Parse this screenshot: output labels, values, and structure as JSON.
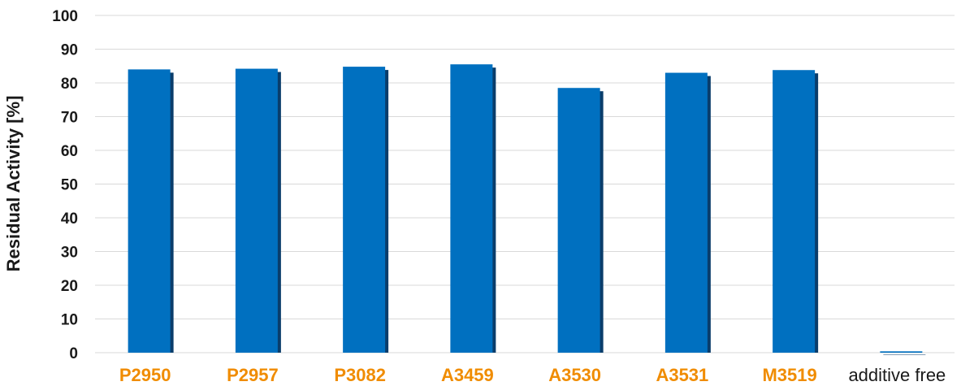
{
  "chart_data": {
    "type": "bar",
    "categories": [
      "P2950",
      "P2957",
      "P3082",
      "A3459",
      "A3530",
      "A3531",
      "M3519",
      "additive free"
    ],
    "category_label_colors": [
      "#f08c00",
      "#f08c00",
      "#f08c00",
      "#f08c00",
      "#f08c00",
      "#f08c00",
      "#f08c00",
      "#1a1a1a"
    ],
    "highlighted_categories": [
      true,
      true,
      true,
      true,
      true,
      true,
      true,
      false
    ],
    "values": [
      84,
      84.2,
      84.8,
      85.5,
      78.5,
      83,
      83.8,
      0.4
    ],
    "ylabel": "Residual Activity [%]",
    "ylim": [
      0,
      100
    ],
    "yticks": [
      0,
      10,
      20,
      30,
      40,
      50,
      60,
      70,
      80,
      90,
      100
    ],
    "grid": true,
    "legend": "none",
    "colors": {
      "bar": "#0070c0",
      "bar_shadow": "#0a3d6b",
      "grid": "#d9d9d9",
      "text": "#1a1a1a"
    }
  }
}
